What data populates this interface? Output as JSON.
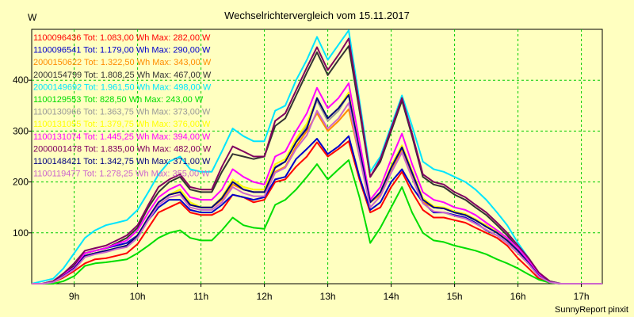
{
  "chart_data": {
    "type": "line",
    "title": "Wechselrichtervergleich vom 15.11.2017",
    "ylabel": "W",
    "xlabel": "",
    "credit": "SunnyReport pinxit",
    "x_range": [
      8.33,
      17.33
    ],
    "ylim": [
      0,
      500
    ],
    "y_ticks": [
      100,
      200,
      300,
      400
    ],
    "y_tick_labels": [
      "100",
      "200",
      "300",
      "400"
    ],
    "x_ticks": [
      9,
      10,
      11,
      12,
      13,
      14,
      15,
      16,
      17
    ],
    "x_tick_labels": [
      "9h",
      "10h",
      "11h",
      "12h",
      "13h",
      "14h",
      "15h",
      "16h",
      "17h"
    ],
    "grid": true,
    "legend_position": "top-left",
    "x": [
      8.33,
      8.5,
      8.67,
      8.83,
      9.0,
      9.17,
      9.33,
      9.5,
      9.67,
      9.83,
      10.0,
      10.17,
      10.33,
      10.5,
      10.67,
      10.83,
      11.0,
      11.17,
      11.33,
      11.5,
      11.67,
      11.83,
      12.0,
      12.17,
      12.33,
      12.5,
      12.67,
      12.83,
      13.0,
      13.17,
      13.33,
      13.5,
      13.67,
      13.83,
      14.0,
      14.17,
      14.33,
      14.5,
      14.67,
      14.83,
      15.0,
      15.17,
      15.33,
      15.5,
      15.67,
      15.83,
      16.0,
      16.17,
      16.33,
      16.5,
      16.67,
      16.83,
      17.0,
      17.17,
      17.33
    ],
    "series": [
      {
        "name": "1100096436 Tot: 1.083,00 Wh Max: 282,00 W",
        "color": "#ff0000",
        "values": [
          0,
          0,
          3,
          12,
          25,
          40,
          48,
          50,
          55,
          60,
          78,
          110,
          140,
          150,
          160,
          140,
          135,
          135,
          145,
          175,
          170,
          160,
          165,
          200,
          205,
          230,
          250,
          278,
          250,
          265,
          280,
          205,
          140,
          150,
          190,
          220,
          180,
          145,
          130,
          130,
          125,
          120,
          110,
          100,
          90,
          75,
          50,
          30,
          10,
          3,
          0,
          0,
          0,
          0,
          0
        ]
      },
      {
        "name": "1100096541 Tot: 1.179,00 Wh Max: 290,00 W",
        "color": "#0000cc",
        "values": [
          0,
          0,
          5,
          20,
          35,
          60,
          65,
          70,
          75,
          80,
          95,
          125,
          150,
          165,
          165,
          145,
          140,
          140,
          155,
          175,
          170,
          165,
          170,
          205,
          210,
          245,
          265,
          285,
          255,
          270,
          290,
          210,
          145,
          160,
          200,
          225,
          190,
          160,
          140,
          140,
          135,
          130,
          120,
          105,
          95,
          80,
          60,
          40,
          20,
          5,
          0,
          0,
          0,
          0,
          0
        ]
      },
      {
        "name": "2000150622 Tot: 1.322,50 Wh Max: 343,00 W",
        "color": "#ff8c00",
        "values": [
          0,
          0,
          3,
          15,
          30,
          55,
          60,
          65,
          70,
          75,
          95,
          130,
          160,
          175,
          180,
          155,
          150,
          150,
          165,
          195,
          185,
          180,
          180,
          220,
          230,
          270,
          300,
          335,
          300,
          320,
          343,
          250,
          160,
          175,
          220,
          265,
          215,
          160,
          150,
          148,
          140,
          135,
          125,
          115,
          100,
          85,
          65,
          40,
          15,
          3,
          0,
          0,
          0,
          0,
          0
        ]
      },
      {
        "name": "2000154799 Tot: 1.808,25 Wh Max: 467,00 W",
        "color": "#333333",
        "values": [
          0,
          0,
          5,
          20,
          35,
          60,
          65,
          70,
          80,
          90,
          110,
          150,
          180,
          200,
          210,
          185,
          180,
          180,
          220,
          255,
          250,
          245,
          250,
          310,
          325,
          370,
          415,
          455,
          410,
          440,
          467,
          340,
          210,
          240,
          300,
          360,
          290,
          210,
          195,
          190,
          175,
          165,
          150,
          135,
          115,
          95,
          70,
          45,
          20,
          5,
          0,
          0,
          0,
          0,
          0
        ]
      },
      {
        "name": "2000149692 Tot: 1.961,50 Wh Max: 498,00 W",
        "color": "#00e5ff",
        "values": [
          0,
          5,
          10,
          30,
          60,
          90,
          105,
          115,
          120,
          125,
          145,
          180,
          215,
          240,
          250,
          225,
          220,
          220,
          260,
          305,
          290,
          280,
          280,
          340,
          350,
          400,
          440,
          485,
          440,
          470,
          498,
          360,
          220,
          250,
          310,
          370,
          310,
          240,
          225,
          220,
          210,
          200,
          185,
          165,
          140,
          115,
          80,
          50,
          20,
          5,
          0,
          0,
          0,
          0,
          0
        ]
      },
      {
        "name": "1100129553 Tot: 828,50 Wh Max: 243,00 W",
        "color": "#00dd00",
        "values": [
          0,
          0,
          0,
          5,
          15,
          35,
          40,
          42,
          45,
          48,
          60,
          75,
          90,
          100,
          105,
          90,
          85,
          85,
          105,
          130,
          115,
          110,
          108,
          155,
          165,
          185,
          210,
          235,
          205,
          225,
          243,
          170,
          80,
          110,
          150,
          190,
          140,
          100,
          85,
          82,
          75,
          70,
          65,
          58,
          48,
          40,
          30,
          18,
          8,
          2,
          0,
          0,
          0,
          0,
          0
        ]
      },
      {
        "name": "1100130966 Tot: 1.363,75 Wh Max: 373,00 W",
        "color": "#999999",
        "values": [
          0,
          0,
          3,
          15,
          30,
          55,
          60,
          65,
          70,
          75,
          95,
          130,
          160,
          175,
          185,
          160,
          150,
          150,
          170,
          200,
          190,
          185,
          185,
          230,
          240,
          280,
          310,
          360,
          320,
          340,
          373,
          260,
          160,
          180,
          230,
          270,
          220,
          165,
          150,
          148,
          140,
          135,
          125,
          112,
          100,
          85,
          65,
          40,
          15,
          3,
          0,
          0,
          0,
          0,
          0
        ]
      },
      {
        "name": "1100131055 Tot: 1.379,75 Wh Max: 376,00 W",
        "color": "#ffff00",
        "values": [
          0,
          0,
          3,
          15,
          30,
          55,
          60,
          65,
          70,
          75,
          95,
          130,
          160,
          175,
          185,
          160,
          150,
          150,
          170,
          205,
          190,
          185,
          185,
          235,
          245,
          285,
          315,
          365,
          325,
          345,
          376,
          265,
          160,
          180,
          232,
          272,
          222,
          168,
          152,
          150,
          142,
          137,
          127,
          114,
          102,
          87,
          67,
          42,
          16,
          3,
          0,
          0,
          0,
          0,
          0
        ]
      },
      {
        "name": "1100131074 Tot: 1.445,25 Wh Max: 394,00 W",
        "color": "#ff00ff",
        "values": [
          0,
          0,
          5,
          18,
          32,
          60,
          65,
          70,
          78,
          85,
          105,
          140,
          170,
          185,
          195,
          170,
          165,
          165,
          185,
          225,
          210,
          200,
          195,
          250,
          260,
          300,
          335,
          385,
          345,
          365,
          394,
          280,
          165,
          190,
          245,
          295,
          235,
          180,
          165,
          160,
          150,
          145,
          135,
          120,
          105,
          90,
          70,
          45,
          18,
          4,
          0,
          0,
          0,
          0,
          0
        ]
      },
      {
        "name": "2000001478 Tot: 1.835,00 Wh Max: 482,00 W",
        "color": "#800060",
        "values": [
          0,
          0,
          5,
          20,
          40,
          65,
          70,
          75,
          85,
          95,
          115,
          155,
          190,
          205,
          215,
          190,
          185,
          185,
          230,
          270,
          260,
          250,
          250,
          320,
          335,
          380,
          425,
          465,
          420,
          450,
          482,
          350,
          210,
          245,
          305,
          365,
          295,
          215,
          200,
          195,
          180,
          170,
          155,
          140,
          120,
          100,
          75,
          50,
          22,
          5,
          0,
          0,
          0,
          0,
          0
        ]
      },
      {
        "name": "1100148421 Tot: 1.342,75 Wh Max: 371,00 W",
        "color": "#000080",
        "values": [
          0,
          0,
          3,
          15,
          30,
          55,
          60,
          65,
          70,
          75,
          95,
          130,
          160,
          175,
          180,
          155,
          150,
          150,
          168,
          200,
          185,
          180,
          180,
          228,
          240,
          278,
          305,
          365,
          325,
          345,
          371,
          262,
          160,
          180,
          228,
          268,
          218,
          165,
          150,
          148,
          140,
          135,
          125,
          112,
          100,
          85,
          65,
          40,
          15,
          3,
          0,
          0,
          0,
          0,
          0
        ]
      },
      {
        "name": "1100119477 Tot: 1.278,25 Wh Max: 355,00 W",
        "color": "#cc66cc",
        "values": [
          0,
          0,
          3,
          14,
          28,
          52,
          58,
          62,
          68,
          72,
          90,
          125,
          155,
          170,
          175,
          150,
          145,
          145,
          160,
          190,
          178,
          172,
          172,
          218,
          228,
          265,
          292,
          340,
          305,
          325,
          355,
          250,
          150,
          172,
          218,
          258,
          208,
          158,
          142,
          140,
          133,
          128,
          118,
          106,
          95,
          80,
          60,
          38,
          14,
          3,
          0,
          0,
          0,
          0,
          0
        ]
      }
    ]
  }
}
